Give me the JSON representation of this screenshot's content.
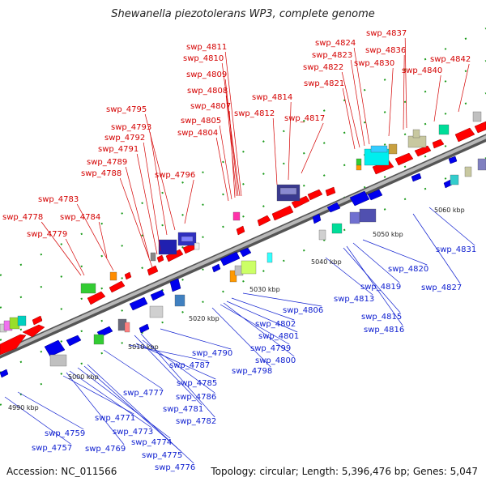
{
  "title": "Shewanella piezotolerans WP3, complete genome",
  "accession": "Accession: NC_011566",
  "summary": "Topology: circular; Length: 5,396,476 bp; Genes: 5,047",
  "scale_labels": [
    "4990 kbp",
    "5000 kbp",
    "5010 kbp",
    "5020 kbp",
    "5030 kbp",
    "5040 kbp",
    "5050 kbp",
    "5060 kbp"
  ],
  "top_labels": [
    "swp_4778",
    "swp_4779",
    "swp_4783",
    "swp_4784",
    "swp_4788",
    "swp_4789",
    "swp_4791",
    "swp_4792",
    "swp_4793",
    "swp_4795",
    "swp_4796",
    "swp_4804",
    "swp_4805",
    "swp_4807",
    "swp_4808",
    "swp_4809",
    "swp_4810",
    "swp_4811",
    "swp_4812",
    "swp_4814",
    "swp_4817",
    "swp_4821",
    "swp_4822",
    "swp_4823",
    "swp_4824",
    "swp_4830",
    "swp_4836",
    "swp_4837",
    "swp_4840",
    "swp_4842"
  ],
  "bottom_labels": [
    "swp_4757",
    "swp_4759",
    "swp_4769",
    "swp_4771",
    "swp_4773",
    "swp_4774",
    "swp_4775",
    "swp_4776",
    "swp_4777",
    "swp_4781",
    "swp_4782",
    "swp_4785",
    "swp_4786",
    "swp_4787",
    "swp_4790",
    "swp_4798",
    "swp_4799",
    "swp_4800",
    "swp_4801",
    "swp_4802",
    "swp_4806",
    "swp_4813",
    "swp_4815",
    "swp_4816",
    "swp_4819",
    "swp_4820",
    "swp_4827",
    "swp_4831"
  ],
  "colors": {
    "forward": "#ff0000",
    "reverse": "#0000ee",
    "top_label": "#d40000",
    "bottom_label": "#1020d0",
    "backbone": "#888888"
  }
}
